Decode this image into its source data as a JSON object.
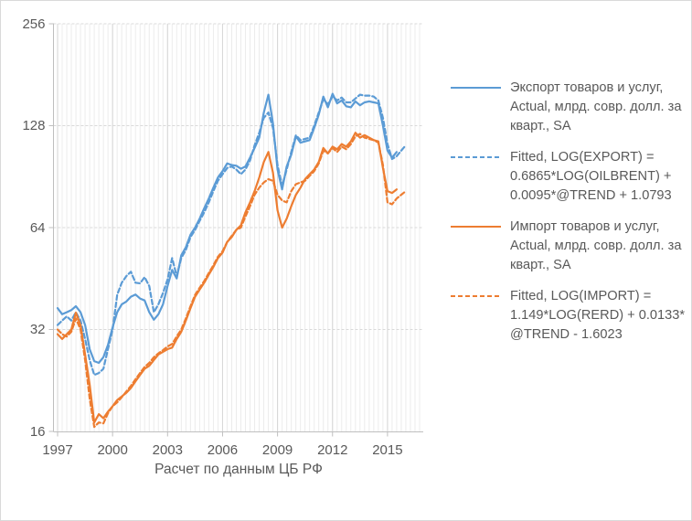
{
  "figure": {
    "kind": "excel-style line chart",
    "background": "#ffffff",
    "border_color": "#d9d9d9"
  },
  "colors": {
    "export": "#5b9bd5",
    "import": "#ed7d31",
    "axis_text": "#595959",
    "legend_text": "#595959",
    "axis_line": "#bfbfbf",
    "grid_major": "#d6d6d6",
    "grid_minor": "#ececec",
    "grid_horizontal": "#d9d9d9"
  },
  "legend": {
    "position": "right",
    "items": [
      {
        "key": "export-actual",
        "label": "Экспорт товаров и услуг, Actual, млрд. совр. долл. за кварт., SA",
        "line_style": "solid",
        "color": "#5b9bd5"
      },
      {
        "key": "export-fitted",
        "label": "Fitted, LOG(EXPORT) = 0.6865*LOG(OILBRENT) + 0.0095*@TREND + 1.0793",
        "line_style": "dashed",
        "color": "#5b9bd5"
      },
      {
        "key": "import-actual",
        "label": "Импорт товаров и услуг, Actual, млрд. совр. долл. за кварт., SA",
        "line_style": "solid",
        "color": "#ed7d31"
      },
      {
        "key": "import-fitted",
        "label": "Fitted, LOG(IMPORT) = 1.149*LOG(RERD) + 0.0133* @TREND - 1.6023",
        "line_style": "dashed",
        "color": "#ed7d31"
      }
    ]
  },
  "chart_data": {
    "type": "line",
    "title": "",
    "xlabel": "Расчет по данным ЦБ РФ",
    "ylabel": "",
    "x_axis": {
      "ticks": [
        1997,
        2000,
        2003,
        2006,
        2009,
        2012,
        2015
      ],
      "unit": "year, quarterly data",
      "start": 1997.0,
      "step": 0.25
    },
    "y_axis": {
      "scale": "log2",
      "ticks": [
        16,
        32,
        64,
        128,
        256
      ],
      "min": 16,
      "max": 256
    },
    "grid": {
      "minor_vertical": "quarterly",
      "major_vertical": "every 3 years",
      "horizontal": "powers of 2, dashed"
    },
    "legend_position": "right",
    "series": [
      {
        "key": "export-actual",
        "name": "Экспорт товаров и услуг, Actual, млрд. совр. долл. за кварт., SA",
        "style": "solid",
        "color": "#5b9bd5",
        "start": 1997.0,
        "step": 0.25,
        "values": [
          37,
          35.5,
          36,
          36.5,
          37.5,
          36,
          33,
          28,
          25.8,
          25.5,
          26.5,
          28.8,
          32.5,
          36,
          38,
          38.7,
          40,
          40.6,
          39.5,
          39,
          36,
          34.2,
          35.5,
          38,
          43,
          48,
          45.3,
          53,
          56,
          61,
          64,
          68,
          73,
          78,
          84,
          90,
          94,
          99,
          98,
          97.5,
          95.5,
          97,
          103,
          110,
          118,
          140,
          158,
          130,
          95,
          83,
          97,
          105,
          119,
          114,
          115,
          116,
          126,
          138,
          156,
          145,
          159,
          149,
          152,
          146,
          145,
          151,
          147,
          150,
          151,
          150,
          149,
          128,
          108,
          103,
          107
        ]
      },
      {
        "key": "export-fitted",
        "name": "Fitted, LOG(EXPORT) = 0.6865*LOG(OILBRENT) + 0.0095*@TREND + 1.0793",
        "style": "dashed",
        "color": "#5b9bd5",
        "start": 1997.0,
        "step": 0.25,
        "values": [
          33,
          34,
          35,
          34,
          36,
          34,
          30,
          26,
          23.5,
          23.8,
          24.5,
          28,
          32,
          40.5,
          44,
          46,
          47.4,
          44,
          43.8,
          45.7,
          43,
          36,
          38,
          41,
          45,
          52,
          46,
          52,
          55,
          60,
          63,
          67,
          71,
          76,
          82,
          88,
          92,
          96,
          97,
          95,
          92,
          95,
          101,
          112,
          122,
          135,
          140,
          126,
          98,
          85,
          95,
          107,
          120,
          116,
          117,
          118,
          128,
          140,
          153,
          148,
          156,
          152,
          155,
          150,
          150,
          154,
          158,
          157,
          157,
          156,
          152,
          135,
          113,
          102,
          104,
          108,
          112
        ]
      },
      {
        "key": "import-actual",
        "name": "Импорт товаров и услуг, Actual, млрд. совр. долл. за кварт., SA",
        "style": "solid",
        "color": "#ed7d31",
        "start": 1997.0,
        "step": 0.25,
        "values": [
          31,
          30,
          31,
          32,
          35.9,
          33,
          27,
          22,
          17,
          18,
          17.5,
          18.3,
          19,
          19.8,
          20.3,
          20.8,
          21.5,
          22.5,
          23.5,
          24.5,
          25,
          26,
          27,
          27.5,
          28,
          28.3,
          30,
          31.5,
          34,
          37,
          40,
          42,
          44,
          46.5,
          49,
          52,
          54,
          58,
          60,
          63,
          65,
          71,
          76,
          82,
          90,
          100,
          107,
          93,
          72,
          64,
          68,
          74,
          80,
          84,
          89,
          92,
          95,
          100,
          110,
          106,
          111,
          109,
          113,
          111,
          115,
          122,
          118,
          120,
          118,
          116,
          115,
          96,
          82,
          81,
          83
        ]
      },
      {
        "key": "import-fitted",
        "name": "Fitted, LOG(IMPORT) = 1.149*LOG(RERD) + 0.0133* @TREND - 1.6023",
        "style": "dashed",
        "color": "#ed7d31",
        "start": 1997.0,
        "step": 0.25,
        "values": [
          32,
          31,
          30.5,
          31.5,
          34.5,
          32,
          26,
          20,
          16.5,
          17,
          16.9,
          18.1,
          19,
          19.5,
          20.2,
          21,
          21.8,
          22.8,
          23.8,
          24.8,
          25.5,
          26.5,
          27.2,
          27.8,
          28.5,
          29,
          30.5,
          32,
          34.5,
          37.5,
          40.5,
          42.5,
          44.5,
          47,
          49.5,
          52.5,
          54.5,
          58,
          60.5,
          63,
          64,
          69,
          74,
          80,
          84,
          87,
          89,
          88,
          80,
          77,
          76,
          82,
          86,
          87,
          88,
          91,
          94,
          99,
          108,
          106,
          110,
          107,
          111,
          109,
          113,
          119,
          121,
          118,
          117,
          116,
          114,
          98,
          76,
          75,
          78,
          80,
          82
        ]
      }
    ]
  }
}
